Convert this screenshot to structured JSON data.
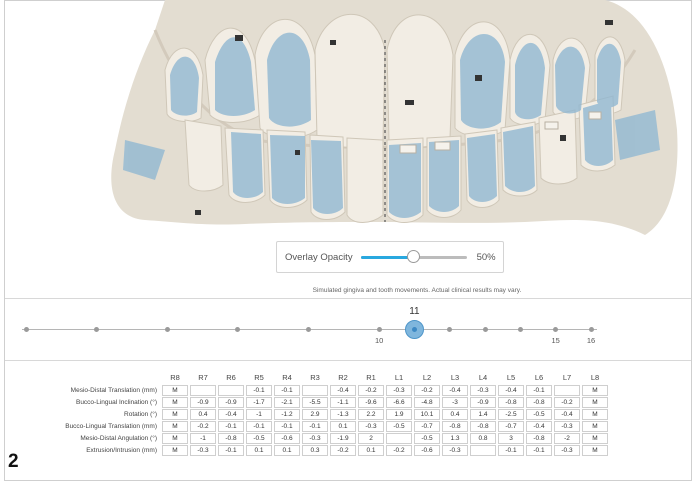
{
  "viewport": {
    "colors": {
      "gingiva": "#e3ddd1",
      "tooth": "#f2ede4",
      "overlay": "#8fb7d2",
      "background": "#ffffff"
    }
  },
  "overlay": {
    "label": "Overlay Opacity",
    "value": "50%",
    "fill_fraction": 0.5,
    "accent_color": "#29a8df"
  },
  "disclaimer": "Simulated gingiva and tooth movements. Actual clinical results may vary.",
  "timeline": {
    "current_stage": "11",
    "current_index": 11,
    "total_stages": 16,
    "labels": [
      {
        "stage": 10,
        "text": "10"
      },
      {
        "stage": 15,
        "text": "15"
      },
      {
        "stage": 16,
        "text": "16"
      }
    ]
  },
  "table": {
    "columns": [
      "R8",
      "R7",
      "R6",
      "R5",
      "R4",
      "R3",
      "R2",
      "R1",
      "L1",
      "L2",
      "L3",
      "L4",
      "L5",
      "L6",
      "L7",
      "L8"
    ],
    "rows": [
      {
        "label": "Mesio-Distal Translation (mm)",
        "cells": [
          [
            "M",
            "m"
          ],
          [
            "",
            ""
          ],
          [
            "",
            ""
          ],
          [
            "-0.1",
            ""
          ],
          [
            "-0.1",
            ""
          ],
          [
            "",
            ""
          ],
          [
            "-0.4",
            ""
          ],
          [
            "-0.2",
            ""
          ],
          [
            "-0.3",
            ""
          ],
          [
            "-0.2",
            ""
          ],
          [
            "-0.4",
            ""
          ],
          [
            "-0.3",
            ""
          ],
          [
            "-0.4",
            ""
          ],
          [
            "-0.1",
            ""
          ],
          [
            "",
            ""
          ],
          [
            "M",
            "m"
          ]
        ]
      },
      {
        "label": "Bucco-Lingual Inclination (°)",
        "cells": [
          [
            "M",
            "m"
          ],
          [
            "-0.9",
            ""
          ],
          [
            "-0.9",
            "orange"
          ],
          [
            "-1.7",
            "red"
          ],
          [
            "-2.1",
            "red"
          ],
          [
            "-5.5",
            "red"
          ],
          [
            "-1.1",
            "red"
          ],
          [
            "-9.6",
            "red"
          ],
          [
            "-6.6",
            "red"
          ],
          [
            "-4.8",
            "red"
          ],
          [
            "-3",
            "red"
          ],
          [
            "-0.9",
            "red"
          ],
          [
            "-0.8",
            "red"
          ],
          [
            "-0.8",
            ""
          ],
          [
            "-0.2",
            ""
          ],
          [
            "M",
            "m"
          ]
        ]
      },
      {
        "label": "Rotation (°)",
        "cells": [
          [
            "M",
            "m"
          ],
          [
            "0.4",
            ""
          ],
          [
            "-0.4",
            ""
          ],
          [
            "-1",
            "red"
          ],
          [
            "-1.2",
            ""
          ],
          [
            "2.9",
            "red"
          ],
          [
            "-1.3",
            "red"
          ],
          [
            "2.2",
            "red"
          ],
          [
            "1.9",
            "red"
          ],
          [
            "10.1",
            "red"
          ],
          [
            "0.4",
            "red"
          ],
          [
            "1.4",
            ""
          ],
          [
            "-2.5",
            "red"
          ],
          [
            "-0.5",
            "red"
          ],
          [
            "-0.4",
            ""
          ],
          [
            "M",
            "m"
          ]
        ]
      },
      {
        "label": "Bucco-Lingual Translation (mm)",
        "cells": [
          [
            "M",
            "m"
          ],
          [
            "-0.2",
            "red"
          ],
          [
            "-0.1",
            "orange"
          ],
          [
            "-0.1",
            ""
          ],
          [
            "-0.1",
            "orange"
          ],
          [
            "-0.1",
            ""
          ],
          [
            "0.1",
            "red"
          ],
          [
            "-0.3",
            "red"
          ],
          [
            "-0.5",
            ""
          ],
          [
            "-0.7",
            "red"
          ],
          [
            "-0.8",
            "red"
          ],
          [
            "-0.8",
            "red"
          ],
          [
            "-0.7",
            "red"
          ],
          [
            "-0.4",
            "red"
          ],
          [
            "-0.3",
            "red"
          ],
          [
            "M",
            "m"
          ]
        ]
      },
      {
        "label": "Mesio-Distal Angulation (°)",
        "cells": [
          [
            "M",
            "m"
          ],
          [
            "-1",
            "red"
          ],
          [
            "-0.8",
            "orange"
          ],
          [
            "-0.5",
            ""
          ],
          [
            "-0.6",
            "orange"
          ],
          [
            "-0.3",
            ""
          ],
          [
            "-1.9",
            "red"
          ],
          [
            "2",
            "red"
          ],
          [
            "",
            ""
          ],
          [
            "-0.5",
            "orange"
          ],
          [
            "1.3",
            "red"
          ],
          [
            "0.8",
            "red"
          ],
          [
            "3",
            "red"
          ],
          [
            "-0.8",
            "orange"
          ],
          [
            "-2",
            "red"
          ],
          [
            "M",
            "m"
          ]
        ]
      },
      {
        "label": "Extrusion/Intrusion (mm)",
        "cells": [
          [
            "M",
            "m"
          ],
          [
            "-0.3",
            "red"
          ],
          [
            "-0.1",
            ""
          ],
          [
            "0.1",
            "orange"
          ],
          [
            "0.1",
            "orange"
          ],
          [
            "0.3",
            "red"
          ],
          [
            "-0.2",
            "red"
          ],
          [
            "0.1",
            "orange"
          ],
          [
            "-0.2",
            ""
          ],
          [
            "-0.6",
            "red"
          ],
          [
            "-0.3",
            "orange"
          ],
          [
            "",
            ""
          ],
          [
            "-0.1",
            ""
          ],
          [
            "-0.1",
            "orange"
          ],
          [
            "-0.3",
            "red"
          ],
          [
            "M",
            "m"
          ]
        ]
      }
    ]
  },
  "figure_number": "2"
}
